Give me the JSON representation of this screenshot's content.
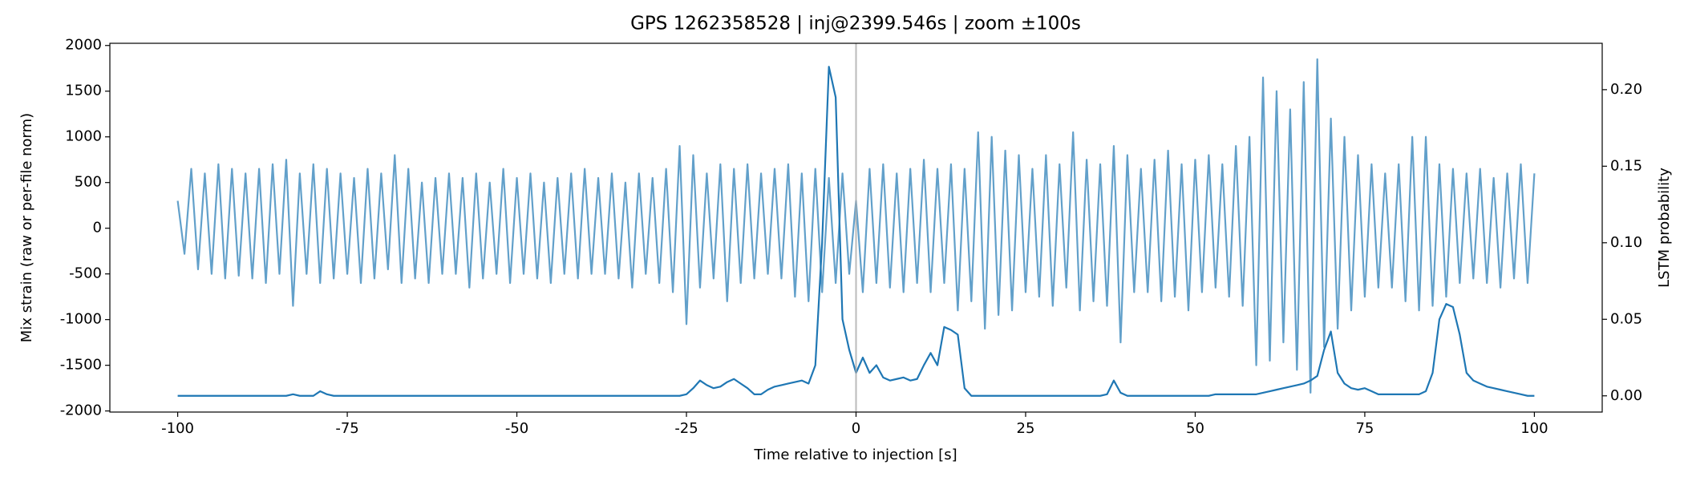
{
  "chart_data": {
    "type": "line",
    "title": "GPS 1262358528 | inj@2399.546s | zoom ±100s",
    "xlabel": "Time relative to injection [s]",
    "ylabel": "Mix strain (raw or per-file norm)",
    "y2label": "LSTM probability",
    "xlim": [
      -110,
      110
    ],
    "ylim": [
      -2012,
      2024
    ],
    "y2lim": [
      -0.0106,
      0.2303
    ],
    "xticks": [
      -100,
      -75,
      -50,
      -25,
      0,
      25,
      50,
      75,
      100
    ],
    "yticks": [
      -2000,
      -1500,
      -1000,
      -500,
      0,
      500,
      1000,
      1500,
      2000
    ],
    "y2ticks": [
      {
        "value": 0,
        "label": "0.00"
      },
      {
        "value": 0.05,
        "label": "0.05"
      },
      {
        "value": 0.1,
        "label": "0.10"
      },
      {
        "value": 0.15,
        "label": "0.15"
      },
      {
        "value": 0.2,
        "label": "0.20"
      }
    ],
    "vline": 0,
    "vline_color": "#aaaaaa",
    "grid": false,
    "x": [
      -100,
      -99,
      -98,
      -97,
      -96,
      -95,
      -94,
      -93,
      -92,
      -91,
      -90,
      -89,
      -88,
      -87,
      -86,
      -85,
      -84,
      -83,
      -82,
      -81,
      -80,
      -79,
      -78,
      -77,
      -76,
      -75,
      -74,
      -73,
      -72,
      -71,
      -70,
      -69,
      -68,
      -67,
      -66,
      -65,
      -64,
      -63,
      -62,
      -61,
      -60,
      -59,
      -58,
      -57,
      -56,
      -55,
      -54,
      -53,
      -52,
      -51,
      -50,
      -49,
      -48,
      -47,
      -46,
      -45,
      -44,
      -43,
      -42,
      -41,
      -40,
      -39,
      -38,
      -37,
      -36,
      -35,
      -34,
      -33,
      -32,
      -31,
      -30,
      -29,
      -28,
      -27,
      -26,
      -25,
      -24,
      -23,
      -22,
      -21,
      -20,
      -19,
      -18,
      -17,
      -16,
      -15,
      -14,
      -13,
      -12,
      -11,
      -10,
      -9,
      -8,
      -7,
      -6,
      -5,
      -4,
      -3,
      -2,
      -1,
      0,
      1,
      2,
      3,
      4,
      5,
      6,
      7,
      8,
      9,
      10,
      11,
      12,
      13,
      14,
      15,
      16,
      17,
      18,
      19,
      20,
      21,
      22,
      23,
      24,
      25,
      26,
      27,
      28,
      29,
      30,
      31,
      32,
      33,
      34,
      35,
      36,
      37,
      38,
      39,
      40,
      41,
      42,
      43,
      44,
      45,
      46,
      47,
      48,
      49,
      50,
      51,
      52,
      53,
      54,
      55,
      56,
      57,
      58,
      59,
      60,
      61,
      62,
      63,
      64,
      65,
      66,
      67,
      68,
      69,
      70,
      71,
      72,
      73,
      74,
      75,
      76,
      77,
      78,
      79,
      80,
      81,
      82,
      83,
      84,
      85,
      86,
      87,
      88,
      89,
      90,
      91,
      92,
      93,
      94,
      95,
      96,
      97,
      98,
      99,
      100
    ],
    "series": [
      {
        "color": "#1f77b4",
        "opacity": 0.7,
        "values": [
          300,
          -280,
          650,
          -450,
          600,
          -500,
          700,
          -550,
          650,
          -520,
          600,
          -550,
          650,
          -600,
          700,
          -500,
          750,
          -850,
          600,
          -500,
          700,
          -600,
          650,
          -550,
          600,
          -500,
          550,
          -600,
          650,
          -550,
          600,
          -450,
          800,
          -600,
          650,
          -550,
          500,
          -600,
          550,
          -500,
          600,
          -500,
          550,
          -650,
          600,
          -550,
          500,
          -500,
          650,
          -600,
          550,
          -500,
          600,
          -550,
          500,
          -600,
          550,
          -500,
          600,
          -550,
          650,
          -500,
          550,
          -500,
          600,
          -550,
          500,
          -650,
          600,
          -500,
          550,
          -600,
          650,
          -700,
          900,
          -1050,
          800,
          -650,
          600,
          -550,
          700,
          -800,
          650,
          -600,
          700,
          -550,
          600,
          -500,
          650,
          -550,
          700,
          -750,
          600,
          -800,
          650,
          -700,
          550,
          -600,
          600,
          -500,
          300,
          -700,
          650,
          -600,
          700,
          -650,
          600,
          -700,
          650,
          -600,
          750,
          -700,
          650,
          -600,
          700,
          -900,
          650,
          -800,
          1050,
          -1100,
          1000,
          -950,
          850,
          -900,
          800,
          -700,
          650,
          -750,
          800,
          -850,
          700,
          -650,
          1050,
          -900,
          750,
          -800,
          700,
          -850,
          900,
          -1250,
          800,
          -700,
          650,
          -700,
          750,
          -800,
          850,
          -750,
          700,
          -900,
          750,
          -700,
          800,
          -650,
          700,
          -750,
          900,
          -850,
          1000,
          -1500,
          1650,
          -1450,
          1500,
          -1250,
          1300,
          -1550,
          1600,
          -1800,
          1850,
          -1300,
          1200,
          -1100,
          1000,
          -900,
          800,
          -750,
          700,
          -650,
          600,
          -650,
          700,
          -800,
          1000,
          -900,
          1000,
          -850,
          700,
          -750,
          650,
          -600,
          600,
          -550,
          650,
          -600,
          550,
          -650,
          600,
          -550,
          700,
          -600,
          600
        ]
      },
      {
        "color": "#1f77b4",
        "opacity": 1,
        "axis": "y2",
        "values": [
          0,
          0,
          0,
          0,
          0,
          0,
          0,
          0,
          0,
          0,
          0,
          0,
          0,
          0,
          0,
          0,
          0,
          0.001,
          0,
          0,
          0,
          0.003,
          0.001,
          0,
          0,
          0,
          0,
          0,
          0,
          0,
          0,
          0,
          0,
          0,
          0,
          0,
          0,
          0,
          0,
          0,
          0,
          0,
          0,
          0,
          0,
          0,
          0,
          0,
          0,
          0,
          0,
          0,
          0,
          0,
          0,
          0,
          0,
          0,
          0,
          0,
          0,
          0,
          0,
          0,
          0,
          0,
          0,
          0,
          0,
          0,
          0,
          0,
          0,
          0,
          0,
          0.001,
          0.005,
          0.01,
          0.007,
          0.005,
          0.006,
          0.009,
          0.011,
          0.008,
          0.005,
          0.001,
          0.001,
          0.004,
          0.006,
          0.007,
          0.008,
          0.009,
          0.01,
          0.008,
          0.02,
          0.1,
          0.215,
          0.195,
          0.05,
          0.03,
          0.015,
          0.025,
          0.015,
          0.02,
          0.012,
          0.01,
          0.011,
          0.012,
          0.01,
          0.011,
          0.02,
          0.028,
          0.02,
          0.045,
          0.043,
          0.04,
          0.005,
          0,
          0,
          0,
          0,
          0,
          0,
          0,
          0,
          0,
          0,
          0,
          0,
          0,
          0,
          0,
          0,
          0,
          0,
          0,
          0,
          0.001,
          0.01,
          0.002,
          0,
          0,
          0,
          0,
          0,
          0,
          0,
          0,
          0,
          0,
          0,
          0,
          0,
          0.001,
          0.001,
          0.001,
          0.001,
          0.001,
          0.001,
          0.001,
          0.002,
          0.003,
          0.004,
          0.005,
          0.006,
          0.007,
          0.008,
          0.01,
          0.013,
          0.03,
          0.042,
          0.015,
          0.008,
          0.005,
          0.004,
          0.005,
          0.003,
          0.001,
          0.001,
          0.001,
          0.001,
          0.001,
          0.001,
          0.001,
          0.003,
          0.015,
          0.05,
          0.06,
          0.058,
          0.04,
          0.015,
          0.01,
          0.008,
          0.006,
          0.005,
          0.004,
          0.003,
          0.002,
          0.001,
          0,
          0
        ]
      }
    ]
  }
}
